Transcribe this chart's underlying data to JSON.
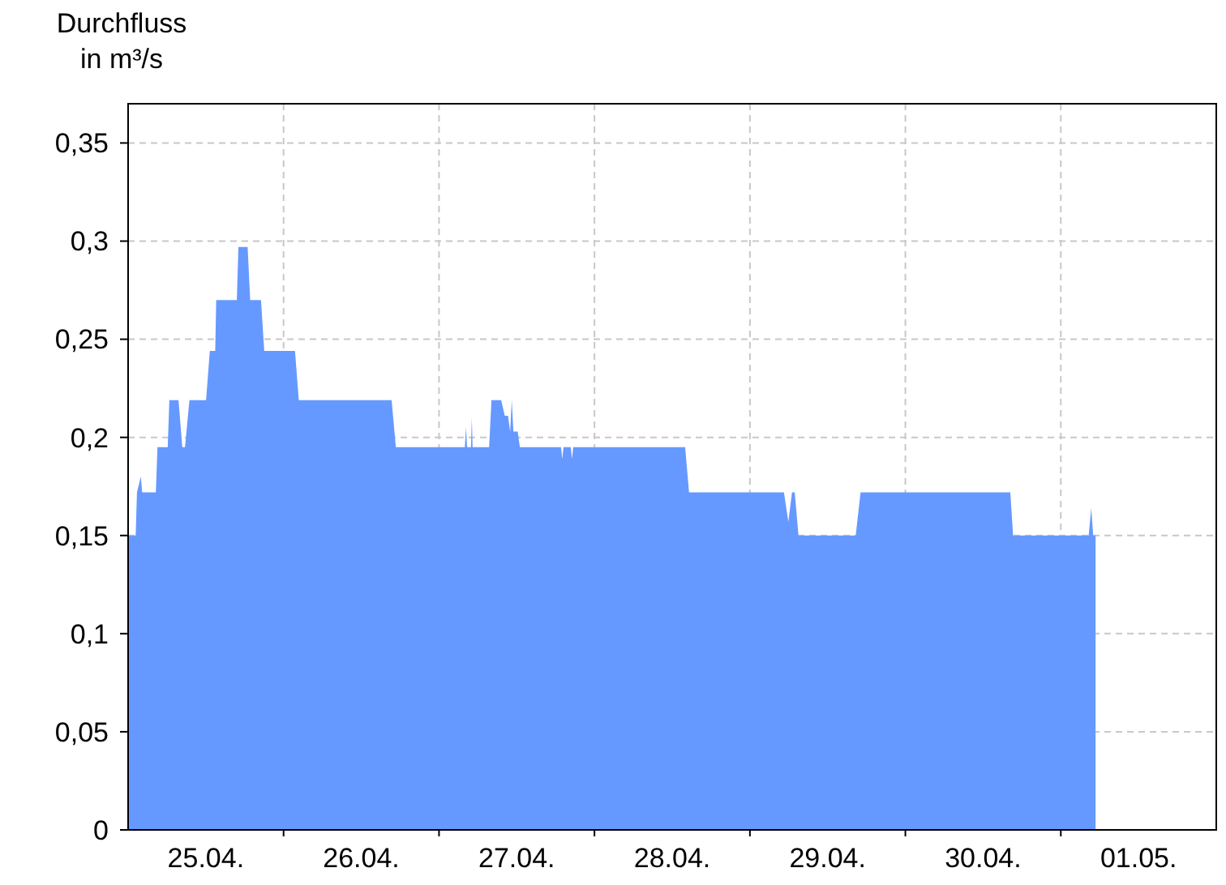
{
  "chart_data": {
    "type": "area",
    "ylabel": "Durchfluss in m³/s",
    "xlim": [
      "--04-25T00:00",
      "--05-02T00:00"
    ],
    "xticks": [
      {
        "value": "--04-25T12:00",
        "label": "25.04."
      },
      {
        "value": "--04-26T00:00",
        "label": null
      },
      {
        "value": "--04-26T12:00",
        "label": "26.04."
      },
      {
        "value": "--04-27T00:00",
        "label": null
      },
      {
        "value": "--04-27T12:00",
        "label": "27.04."
      },
      {
        "value": "--04-28T00:00",
        "label": null
      },
      {
        "value": "--04-28T12:00",
        "label": "28.04."
      },
      {
        "value": "--04-29T00:00",
        "label": null
      },
      {
        "value": "--04-29T12:00",
        "label": "29.04."
      },
      {
        "value": "--04-30T00:00",
        "label": null
      },
      {
        "value": "--04-30T12:00",
        "label": "30.04."
      },
      {
        "value": "--05-01T00:00",
        "label": null
      },
      {
        "value": "--05-01T12:00",
        "label": "01.05."
      }
    ],
    "ylim": [
      0,
      0.37
    ],
    "yticks": [
      {
        "value": 0,
        "label": "0"
      },
      {
        "value": 0.05,
        "label": "0,05"
      },
      {
        "value": 0.1,
        "label": "0,1"
      },
      {
        "value": 0.15,
        "label": "0,15"
      },
      {
        "value": 0.2,
        "label": "0,2"
      },
      {
        "value": 0.25,
        "label": "0,25"
      },
      {
        "value": 0.3,
        "label": "0,3"
      },
      {
        "value": 0.35,
        "label": "0,35"
      }
    ],
    "grid": true,
    "series": [
      {
        "color": "#6699ff",
        "x": [
          "--04-25T00:00",
          "--04-25T01:10",
          "--04-25T01:22",
          "--04-25T01:58",
          "--04-25T02:10",
          "--04-25T04:17",
          "--04-25T04:32",
          "--04-25T06:07",
          "--04-25T06:22",
          "--04-25T07:47",
          "--04-25T08:22",
          "--04-25T08:47",
          "--04-25T09:28",
          "--04-25T12:02",
          "--04-25T12:37",
          "--04-25T13:27",
          "--04-25T13:36",
          "--04-25T16:47",
          "--04-25T17:02",
          "--04-25T18:27",
          "--04-25T18:51",
          "--04-25T20:31",
          "--04-25T21:01",
          "--04-26T01:46",
          "--04-26T02:21",
          "--04-26T16:41",
          "--04-26T17:20",
          "--04-27T03:59",
          "--04-27T04:10",
          "--04-27T04:20",
          "--04-27T04:56",
          "--04-27T05:04",
          "--04-27T05:11",
          "--04-27T07:44",
          "--04-27T08:06",
          "--04-27T09:36",
          "--04-27T10:09",
          "--04-27T10:39",
          "--04-27T10:59",
          "--04-27T11:14",
          "--04-27T11:29",
          "--04-27T12:09",
          "--04-27T12:29",
          "--04-27T18:50",
          "--04-27T19:02",
          "--04-27T19:13",
          "--04-27T20:20",
          "--04-27T20:32",
          "--04-27T20:43",
          "--04-28T14:00",
          "--04-28T14:36",
          "--04-29T05:15",
          "--04-29T05:56",
          "--04-29T06:30",
          "--04-29T06:55",
          "--04-29T07:30",
          "--04-29T16:20",
          "--04-29T17:05",
          "--04-30T16:12",
          "--04-30T16:38",
          "--05-01T04:18",
          "--05-01T04:42",
          "--05-01T05:00",
          "--05-01T05:22"
        ],
        "values": [
          0.15,
          0.15,
          0.172,
          0.18,
          0.172,
          0.172,
          0.195,
          0.195,
          0.219,
          0.219,
          0.195,
          0.195,
          0.219,
          0.219,
          0.244,
          0.244,
          0.27,
          0.27,
          0.297,
          0.297,
          0.27,
          0.27,
          0.244,
          0.244,
          0.219,
          0.219,
          0.195,
          0.195,
          0.205,
          0.195,
          0.195,
          0.21,
          0.195,
          0.195,
          0.219,
          0.219,
          0.211,
          0.211,
          0.203,
          0.219,
          0.203,
          0.203,
          0.195,
          0.195,
          0.189,
          0.195,
          0.195,
          0.189,
          0.195,
          0.195,
          0.172,
          0.172,
          0.157,
          0.172,
          0.172,
          0.15,
          0.15,
          0.172,
          0.172,
          0.15,
          0.15,
          0.164,
          0.15,
          0.15
        ]
      }
    ]
  }
}
